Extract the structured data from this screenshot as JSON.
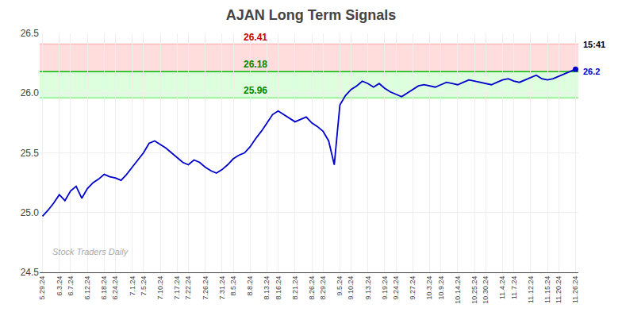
{
  "chart_data": {
    "type": "line",
    "title": "AJAN Long Term Signals",
    "categories": [
      "5.29.24",
      null,
      null,
      "6.3.24",
      null,
      "6.7.24",
      null,
      null,
      "6.12.24",
      null,
      null,
      "6.18.24",
      null,
      "6.24.24",
      null,
      null,
      "7.1.24",
      null,
      "7.5.24",
      null,
      null,
      "7.10.24",
      null,
      null,
      "7.17.24",
      null,
      "7.22.24",
      null,
      null,
      "7.26.24",
      null,
      null,
      "7.31.24",
      null,
      "8.5.24",
      null,
      null,
      "8.8.24",
      null,
      null,
      "8.13.24",
      null,
      "8.16.24",
      null,
      null,
      "8.21.24",
      null,
      null,
      "8.26.24",
      null,
      "8.29.24",
      null,
      null,
      "9.5.24",
      null,
      "9.10.24",
      null,
      null,
      "9.13.24",
      null,
      null,
      "9.19.24",
      null,
      "9.24.24",
      null,
      null,
      "9.27.24",
      null,
      null,
      "10.3.24",
      null,
      "10.9.24",
      null,
      null,
      "10.14.24",
      null,
      null,
      "10.25.24",
      null,
      "10.30.24",
      null,
      null,
      "11.4.24",
      null,
      "11.7.24",
      null,
      null,
      "11.12.24",
      null,
      null,
      "11.15.24",
      null,
      "11.20.24",
      null,
      null,
      "11.26.24"
    ],
    "values": [
      24.97,
      25.02,
      25.08,
      25.15,
      25.1,
      25.18,
      25.22,
      25.12,
      25.2,
      25.25,
      25.28,
      25.32,
      25.3,
      25.29,
      25.27,
      25.32,
      25.38,
      25.44,
      25.5,
      25.58,
      25.6,
      25.57,
      25.54,
      25.5,
      25.46,
      25.42,
      25.4,
      25.44,
      25.42,
      25.38,
      25.35,
      25.33,
      25.36,
      25.4,
      25.45,
      25.48,
      25.5,
      25.55,
      25.62,
      25.68,
      25.75,
      25.82,
      25.85,
      25.82,
      25.79,
      25.76,
      25.78,
      25.8,
      25.75,
      25.72,
      25.68,
      25.6,
      25.4,
      25.9,
      25.98,
      26.03,
      26.06,
      26.1,
      26.08,
      26.05,
      26.08,
      26.04,
      26.01,
      25.99,
      25.97,
      26.0,
      26.03,
      26.06,
      26.07,
      26.06,
      26.05,
      26.07,
      26.09,
      26.08,
      26.07,
      26.09,
      26.11,
      26.1,
      26.09,
      26.08,
      26.07,
      26.09,
      26.11,
      26.12,
      26.1,
      26.09,
      26.11,
      26.13,
      26.15,
      26.12,
      26.11,
      26.12,
      26.14,
      26.16,
      26.18,
      26.2
    ],
    "color": "#0000cc",
    "ylim": [
      24.5,
      26.5
    ],
    "yticks": [
      24.5,
      {
        "value": 25,
        "label": "25.0"
      },
      25.5,
      {
        "value": 26,
        "label": "26.0"
      },
      26.5
    ],
    "grid": true,
    "hlines": [
      {
        "value": 26.41,
        "label": "26.41",
        "color": "#ffbbbb",
        "label_color": "#cc0000"
      },
      {
        "value": 26.18,
        "label": "26.18",
        "color": "#00bb00",
        "label_color": "#008800"
      },
      {
        "value": 25.96,
        "label": "25.96",
        "color": "#88ee88",
        "label_color": "#008800"
      }
    ],
    "bands": [
      {
        "from": 26.18,
        "to": 26.41,
        "color": "#ffdddd"
      },
      {
        "from": 25.96,
        "to": 26.18,
        "color": "#ddffdd"
      }
    ],
    "annotations": [
      {
        "text": "15:41",
        "color": "#000000"
      },
      {
        "text": "26.2",
        "color": "#0000cc"
      }
    ],
    "watermark": {
      "text": "Stock Traders Daily",
      "color": "#aaaaaa"
    }
  }
}
